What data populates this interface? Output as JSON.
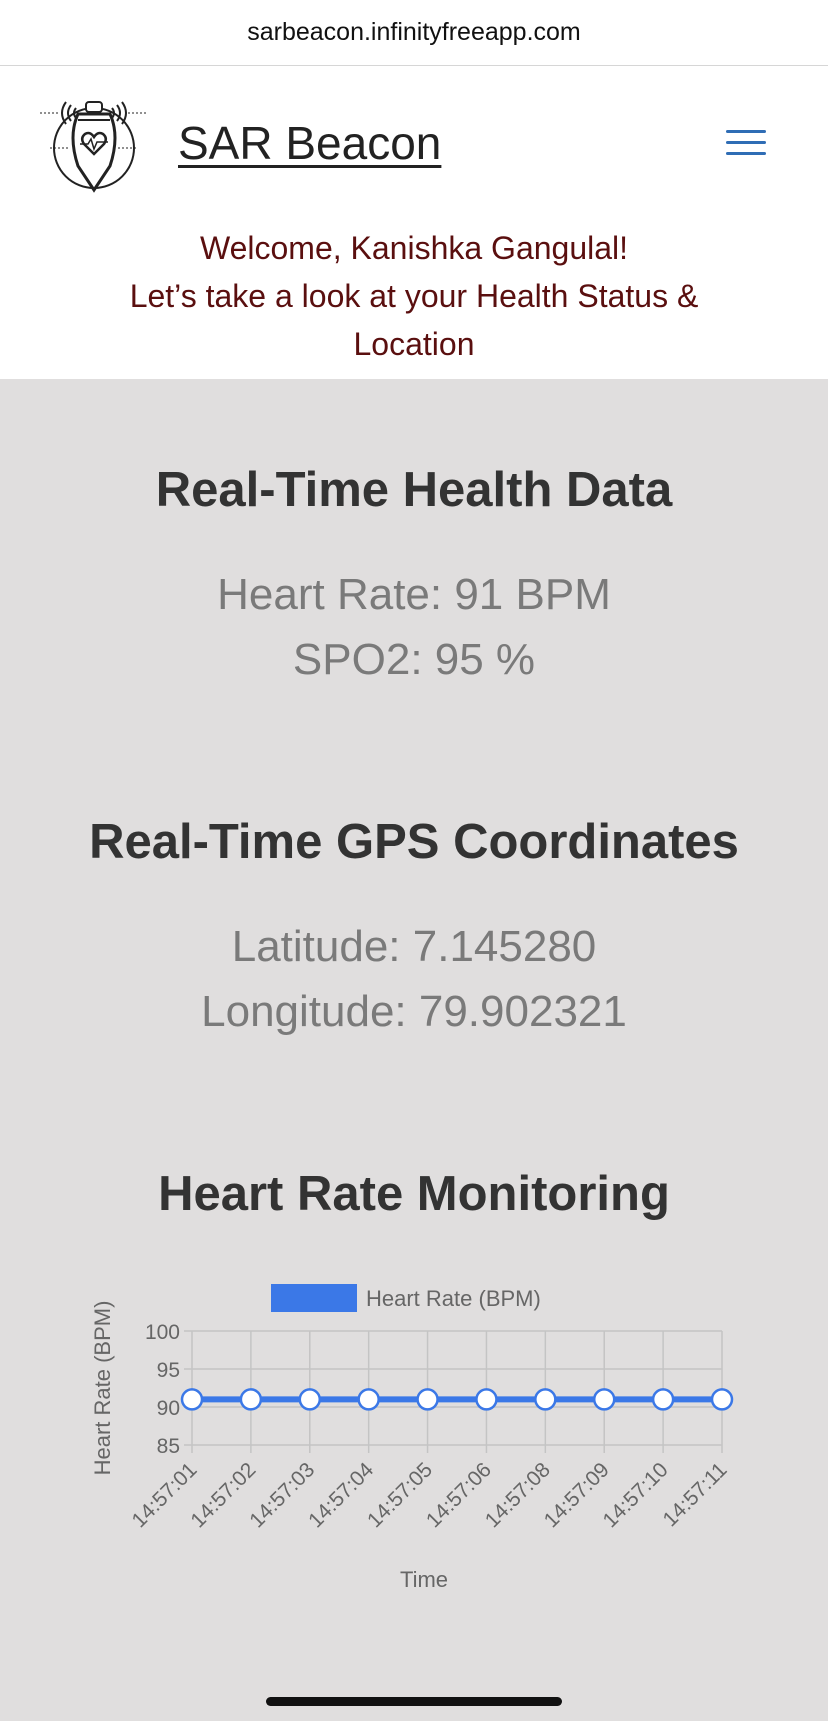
{
  "browser": {
    "url": "sarbeacon.infinityfreeapp.com"
  },
  "header": {
    "brand": "SAR Beacon",
    "logo_icon": "beacon-heart-icon",
    "menu_icon": "hamburger-menu-icon",
    "welcome_line1": "Welcome, Kanishka Gangulal!",
    "welcome_line2": "Let’s take a look at your Health Status &",
    "welcome_line3": "Location"
  },
  "health": {
    "title": "Real-Time Health Data",
    "heart_rate": "Heart Rate: 91 BPM",
    "spo2": "SPO2: 95 %"
  },
  "gps": {
    "title": "Real-Time GPS Coordinates",
    "latitude": "Latitude: 7.145280",
    "longitude": "Longitude: 79.902321"
  },
  "monitoring": {
    "title": "Heart Rate Monitoring"
  },
  "colors": {
    "accent": "#3b78e7",
    "welcome": "#5a0f0f",
    "menu": "#2f6db5",
    "background": "#e0dede"
  },
  "chart_data": {
    "type": "line",
    "title": "",
    "legend": "Heart Rate (BPM)",
    "legend_position": "top",
    "xlabel": "Time",
    "ylabel": "Heart Rate (BPM)",
    "ylim": [
      85,
      100
    ],
    "yticks": [
      100,
      95,
      90,
      85
    ],
    "grid": true,
    "x": [
      "14:57:01",
      "14:57:02",
      "14:57:03",
      "14:57:04",
      "14:57:05",
      "14:57:06",
      "14:57:08",
      "14:57:09",
      "14:57:10",
      "14:57:11"
    ],
    "series": [
      {
        "name": "Heart Rate (BPM)",
        "values": [
          91,
          91,
          91,
          91,
          91,
          91,
          91,
          91,
          91,
          91
        ]
      }
    ]
  }
}
